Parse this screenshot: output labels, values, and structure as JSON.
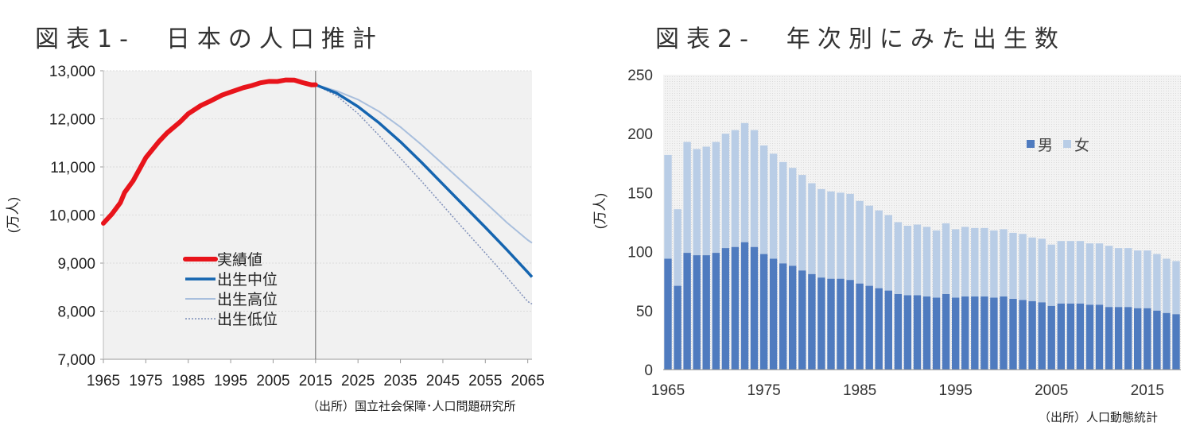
{
  "charts": [
    {
      "title": "図表1-　日本の人口推計",
      "source": "（出所）国立社会保障･人口問題研究所"
    },
    {
      "title": "図表2-　年次別にみた出生数",
      "source": "（出所）人口動態統計"
    }
  ],
  "colors": {
    "actual": "#e8141b",
    "mid": "#1565b0",
    "high": "#a9bfdd",
    "low": "#7e8fb9",
    "male": "#4f7bbf",
    "female": "#b9cde6",
    "plot_bg": "#f1f1f1"
  },
  "chart_data": [
    {
      "type": "line",
      "title": "",
      "xlabel": "",
      "ylabel": "(万人)",
      "xlim": [
        1965,
        2066
      ],
      "ylim": [
        7000,
        13000
      ],
      "x_ticks": [
        1965,
        1975,
        1985,
        1995,
        2005,
        2015,
        2025,
        2035,
        2045,
        2055,
        2065
      ],
      "y_tick_labels": [
        "7,000",
        "8,000",
        "9,000",
        "10,000",
        "11,000",
        "12,000",
        "13,000"
      ],
      "y_ticks": [
        7000,
        8000,
        9000,
        10000,
        11000,
        12000,
        13000
      ],
      "grid": true,
      "legend": "lower-center",
      "vertical_marker_x": 2015,
      "series": [
        {
          "name": "実績値",
          "style": "thick",
          "x": [
            1965,
            1967,
            1969,
            1970,
            1972,
            1975,
            1978,
            1980,
            1983,
            1985,
            1988,
            1990,
            1993,
            1995,
            1998,
            2000,
            2002,
            2004,
            2006,
            2008,
            2010,
            2012,
            2014,
            2015
          ],
          "y": [
            9828,
            10020,
            10254,
            10467,
            10710,
            11194,
            11519,
            11706,
            11931,
            12105,
            12278,
            12361,
            12494,
            12557,
            12648,
            12693,
            12749,
            12779,
            12777,
            12808,
            12806,
            12752,
            12708,
            12709
          ]
        },
        {
          "name": "出生中位",
          "style": "medium",
          "x": [
            2015,
            2020,
            2025,
            2030,
            2035,
            2040,
            2045,
            2050,
            2055,
            2060,
            2065,
            2066
          ],
          "y": [
            12709,
            12532,
            12254,
            11913,
            11522,
            11092,
            10642,
            10192,
            9744,
            9284,
            8808,
            8712
          ]
        },
        {
          "name": "出生高位",
          "style": "thin",
          "x": [
            2015,
            2020,
            2025,
            2030,
            2035,
            2040,
            2045,
            2050,
            2055,
            2060,
            2065,
            2066
          ],
          "y": [
            12709,
            12580,
            12400,
            12150,
            11830,
            11460,
            11060,
            10660,
            10260,
            9850,
            9480,
            9420
          ]
        },
        {
          "name": "出生低位",
          "style": "dotted",
          "x": [
            2015,
            2020,
            2025,
            2030,
            2035,
            2040,
            2045,
            2050,
            2055,
            2060,
            2065,
            2066
          ],
          "y": [
            12709,
            12480,
            12110,
            11650,
            11180,
            10700,
            10200,
            9700,
            9210,
            8710,
            8200,
            8150
          ]
        }
      ]
    },
    {
      "type": "bar",
      "stacked": true,
      "title": "",
      "xlabel": "",
      "ylabel": "(万人)",
      "ylim": [
        0,
        250
      ],
      "y_ticks": [
        0,
        50,
        100,
        150,
        200,
        250
      ],
      "x_tick_labels": [
        "1965",
        "1975",
        "1985",
        "1995",
        "2005",
        "2015"
      ],
      "grid": false,
      "legend": "upper-right",
      "categories": [
        1965,
        1966,
        1967,
        1968,
        1969,
        1970,
        1971,
        1972,
        1973,
        1974,
        1975,
        1976,
        1977,
        1978,
        1979,
        1980,
        1981,
        1982,
        1983,
        1984,
        1985,
        1986,
        1987,
        1988,
        1989,
        1990,
        1991,
        1992,
        1993,
        1994,
        1995,
        1996,
        1997,
        1998,
        1999,
        2000,
        2001,
        2002,
        2003,
        2004,
        2005,
        2006,
        2007,
        2008,
        2009,
        2010,
        2011,
        2012,
        2013,
        2014,
        2015,
        2016,
        2017,
        2018
      ],
      "series": [
        {
          "name": "男",
          "values": [
            94,
            71,
            99,
            97,
            97,
            99,
            103,
            104,
            108,
            104,
            98,
            94,
            90,
            88,
            84,
            81,
            78,
            77,
            77,
            76,
            73,
            71,
            69,
            67,
            64,
            63,
            63,
            62,
            61,
            64,
            61,
            62,
            62,
            62,
            61,
            62,
            60,
            59,
            58,
            57,
            54,
            56,
            56,
            56,
            55,
            55,
            53,
            53,
            53,
            52,
            52,
            50,
            48,
            47
          ]
        },
        {
          "name": "女",
          "values": [
            88,
            65,
            94,
            90,
            92,
            94,
            97,
            99,
            101,
            99,
            92,
            89,
            86,
            83,
            81,
            77,
            75,
            74,
            73,
            73,
            70,
            68,
            66,
            64,
            61,
            59,
            60,
            59,
            57,
            60,
            58,
            59,
            58,
            58,
            57,
            57,
            56,
            56,
            54,
            54,
            52,
            53,
            53,
            53,
            52,
            52,
            52,
            50,
            50,
            49,
            49,
            48,
            46,
            45
          ]
        }
      ]
    }
  ]
}
